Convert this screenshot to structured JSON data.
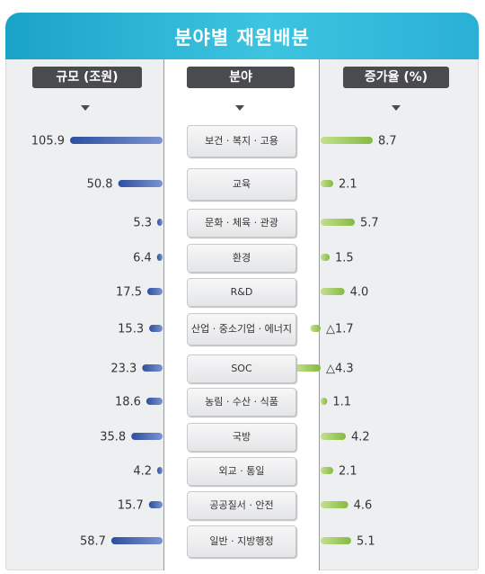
{
  "title": "분야별 재원배분",
  "headers": {
    "size": "규모 (조원)",
    "category": "분야",
    "growth": "증가율 (%)"
  },
  "colors": {
    "size_bar": "#4a67b3",
    "growth_bar": "#9cc95d",
    "title_bar": "#27b2d6"
  },
  "chart_data": {
    "type": "bar",
    "categories": [
      "보건 · 복지 · 고용",
      "교육",
      "문화 · 체육 · 관광",
      "환경",
      "R&D",
      "산업 · 중소기업 · 에너지",
      "SOC",
      "농림 · 수산 · 식품",
      "국방",
      "외교 · 통일",
      "공공질서 · 안전",
      "일반 · 지방행정"
    ],
    "series": [
      {
        "name": "규모 (조원)",
        "values": [
          105.9,
          50.8,
          5.3,
          6.4,
          17.5,
          15.3,
          23.3,
          18.6,
          35.8,
          4.2,
          15.7,
          58.7
        ],
        "labels": [
          "105.9",
          "50.8",
          "5.3",
          "6.4",
          "17.5",
          "15.3",
          "23.3",
          "18.6",
          "35.8",
          "4.2",
          "15.7",
          "58.7"
        ]
      },
      {
        "name": "증가율 (%)",
        "values": [
          8.7,
          2.1,
          5.7,
          1.5,
          4.0,
          -1.7,
          -4.3,
          1.1,
          4.2,
          2.1,
          4.6,
          5.1
        ],
        "labels": [
          "8.7",
          "2.1",
          "5.7",
          "1.5",
          "4.0",
          "△1.7",
          "△4.3",
          "1.1",
          "4.2",
          "2.1",
          "4.6",
          "5.1"
        ]
      }
    ]
  }
}
